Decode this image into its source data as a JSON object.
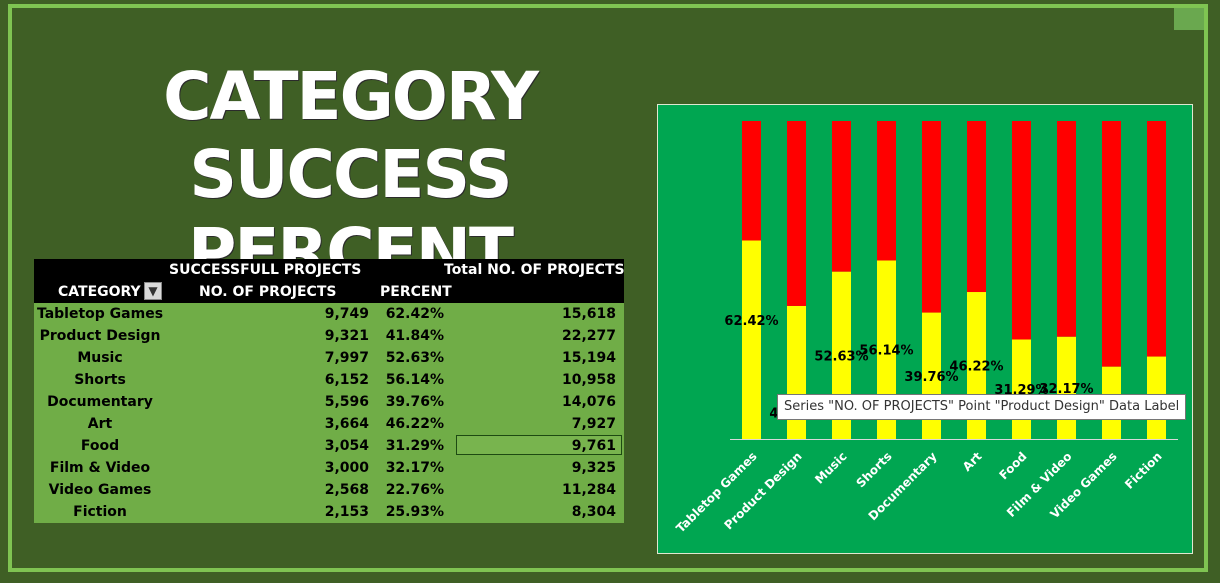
{
  "title": {
    "line1": "CATEGORY",
    "line2": "SUCCESS PERCENT"
  },
  "table": {
    "group_header": "SUCCESSFULL PROJECTS",
    "total_header": "Total NO. OF PROJECTS",
    "col_category": "CATEGORY",
    "col_count": "NO. OF PROJECTS",
    "col_percent": "PERCENT",
    "filter_icon": "filter-icon",
    "rows": [
      {
        "category": "Tabletop Games",
        "count": "9,749",
        "percent": "62.42%",
        "total": "15,618"
      },
      {
        "category": "Product Design",
        "count": "9,321",
        "percent": "41.84%",
        "total": "22,277"
      },
      {
        "category": "Music",
        "count": "7,997",
        "percent": "52.63%",
        "total": "15,194"
      },
      {
        "category": "Shorts",
        "count": "6,152",
        "percent": "56.14%",
        "total": "10,958"
      },
      {
        "category": "Documentary",
        "count": "5,596",
        "percent": "39.76%",
        "total": "14,076"
      },
      {
        "category": "Art",
        "count": "3,664",
        "percent": "46.22%",
        "total": "7,927"
      },
      {
        "category": "Food",
        "count": "3,054",
        "percent": "31.29%",
        "total": "9,761"
      },
      {
        "category": "Film & Video",
        "count": "3,000",
        "percent": "32.17%",
        "total": "9,325"
      },
      {
        "category": "Video Games",
        "count": "2,568",
        "percent": "22.76%",
        "total": "11,284"
      },
      {
        "category": "Fiction",
        "count": "2,153",
        "percent": "25.93%",
        "total": "8,304"
      }
    ],
    "selected_row": 6
  },
  "tooltip": "Series \"NO. OF PROJECTS\" Point \"Product Design\" Data Label",
  "chart_data": {
    "type": "bar",
    "stacked": "100%",
    "categories": [
      "Tabletop Games",
      "Product Design",
      "Music",
      "Shorts",
      "Documentary",
      "Art",
      "Food",
      "Film & Video",
      "Video Games",
      "Fiction"
    ],
    "series": [
      {
        "name": "NO. OF PROJECTS",
        "color": "#ffff00",
        "values": [
          62.42,
          41.84,
          52.63,
          56.14,
          39.76,
          46.22,
          31.29,
          32.17,
          22.76,
          25.93
        ]
      },
      {
        "color": "#ff0000",
        "values": [
          37.58,
          58.16,
          47.37,
          43.86,
          60.24,
          53.78,
          68.71,
          67.83,
          77.24,
          74.07
        ]
      }
    ],
    "data_labels": [
      "62.42%",
      "41.84%",
      "52.63%",
      "56.14%",
      "39.76%",
      "46.22%",
      "31.29%",
      "32.17%",
      "",
      ""
    ],
    "ylim": [
      0,
      100
    ],
    "grid": false,
    "legend": "none"
  }
}
